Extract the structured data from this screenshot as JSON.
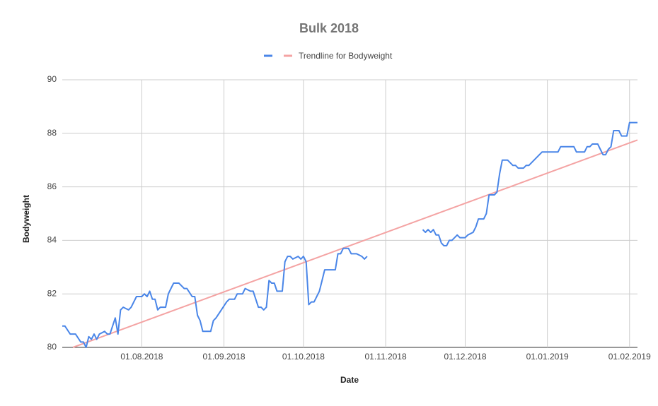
{
  "chart_data": {
    "type": "line",
    "title": "Bulk 2018",
    "x_label": "Date",
    "y_label": "Bodyweight",
    "xlim": [
      "02.07.2018",
      "04.02.2019"
    ],
    "xticks": [
      "01.08.2018",
      "01.09.2018",
      "01.10.2018",
      "01.11.2018",
      "01.12.2018",
      "01.01.2019",
      "01.02.2019"
    ],
    "ylim": [
      80,
      90
    ],
    "yticks": [
      80,
      82,
      84,
      86,
      88,
      90
    ],
    "grid": true,
    "legend": "top",
    "x": [
      "02.07.2018",
      "03.07.2018",
      "05.07.2018",
      "07.07.2018",
      "09.07.2018",
      "10.07.2018",
      "11.07.2018",
      "12.07.2018",
      "13.07.2018",
      "14.07.2018",
      "15.07.2018",
      "16.07.2018",
      "18.07.2018",
      "19.07.2018",
      "20.07.2018",
      "22.07.2018",
      "23.07.2018",
      "24.07.2018",
      "25.07.2018",
      "27.07.2018",
      "28.07.2018",
      "30.07.2018",
      "01.08.2018",
      "02.08.2018",
      "03.08.2018",
      "04.08.2018",
      "05.08.2018",
      "06.08.2018",
      "07.08.2018",
      "08.08.2018",
      "10.08.2018",
      "11.08.2018",
      "12.08.2018",
      "13.08.2018",
      "15.08.2018",
      "17.08.2018",
      "18.08.2018",
      "20.08.2018",
      "21.08.2018",
      "22.08.2018",
      "23.08.2018",
      "24.08.2018",
      "25.08.2018",
      "27.08.2018",
      "28.08.2018",
      "29.08.2018",
      "31.08.2018",
      "02.09.2018",
      "03.09.2018",
      "05.09.2018",
      "06.09.2018",
      "08.09.2018",
      "09.09.2018",
      "11.09.2018",
      "12.09.2018",
      "14.09.2018",
      "15.09.2018",
      "16.09.2018",
      "17.09.2018",
      "18.09.2018",
      "19.09.2018",
      "20.09.2018",
      "21.09.2018",
      "22.09.2018",
      "23.09.2018",
      "24.09.2018",
      "25.09.2018",
      "26.09.2018",
      "27.09.2018",
      "29.09.2018",
      "30.09.2018",
      "01.10.2018",
      "02.10.2018",
      "03.10.2018",
      "04.10.2018",
      "05.10.2018",
      "07.10.2018",
      "08.10.2018",
      "09.10.2018",
      "10.10.2018",
      "13.10.2018",
      "14.10.2018",
      "15.10.2018",
      "16.10.2018",
      "18.10.2018",
      "19.10.2018",
      "21.10.2018",
      "23.10.2018",
      "24.10.2018",
      "25.10.2018",
      "26.10.2018",
      "15.11.2018",
      "16.11.2018",
      "17.11.2018",
      "18.11.2018",
      "19.11.2018",
      "20.11.2018",
      "21.11.2018",
      "22.11.2018",
      "23.11.2018",
      "24.11.2018",
      "25.11.2018",
      "26.11.2018",
      "28.11.2018",
      "29.11.2018",
      "01.12.2018",
      "02.12.2018",
      "04.12.2018",
      "05.12.2018",
      "06.12.2018",
      "08.12.2018",
      "09.12.2018",
      "10.12.2018",
      "11.12.2018",
      "12.12.2018",
      "13.12.2018",
      "14.12.2018",
      "15.12.2018",
      "17.12.2018",
      "19.12.2018",
      "20.12.2018",
      "21.12.2018",
      "23.12.2018",
      "24.12.2018",
      "25.12.2018",
      "27.12.2018",
      "29.12.2018",
      "30.12.2018",
      "01.01.2019",
      "04.01.2019",
      "05.01.2019",
      "06.01.2019",
      "07.01.2019",
      "10.01.2019",
      "11.01.2019",
      "12.01.2019",
      "15.01.2019",
      "16.01.2019",
      "17.01.2019",
      "18.01.2019",
      "20.01.2019",
      "21.01.2019",
      "22.01.2019",
      "23.01.2019",
      "24.01.2019",
      "25.01.2019",
      "26.01.2019",
      "27.01.2019",
      "28.01.2019",
      "29.01.2019",
      "30.01.2019",
      "31.01.2019",
      "01.02.2019",
      "02.02.2019",
      "04.02.2019"
    ],
    "series": [
      {
        "color": "#4a86e8",
        "values": [
          80.8,
          80.8,
          80.5,
          80.5,
          80.2,
          80.2,
          80.0,
          80.4,
          80.3,
          80.5,
          80.3,
          80.5,
          80.6,
          80.5,
          80.5,
          81.1,
          80.5,
          81.4,
          81.5,
          81.4,
          81.5,
          81.9,
          81.9,
          82.0,
          81.9,
          82.1,
          81.8,
          81.8,
          81.4,
          81.5,
          81.5,
          82.0,
          82.2,
          82.4,
          82.4,
          82.2,
          82.2,
          81.9,
          81.9,
          81.2,
          81.0,
          80.6,
          80.6,
          80.6,
          81.0,
          81.1,
          81.4,
          81.7,
          81.8,
          81.8,
          82.0,
          82.0,
          82.2,
          82.1,
          82.1,
          81.5,
          81.5,
          81.4,
          81.5,
          82.5,
          82.4,
          82.4,
          82.1,
          82.1,
          82.1,
          83.2,
          83.4,
          83.4,
          83.3,
          83.4,
          83.3,
          83.4,
          83.2,
          81.6,
          81.7,
          81.7,
          82.1,
          82.5,
          82.9,
          82.9,
          82.9,
          83.5,
          83.5,
          83.7,
          83.7,
          83.5,
          83.5,
          83.4,
          83.3,
          83.4,
          null,
          84.4,
          84.3,
          84.4,
          84.3,
          84.4,
          84.2,
          84.2,
          83.9,
          83.8,
          83.8,
          84.0,
          84.0,
          84.2,
          84.1,
          84.1,
          84.2,
          84.3,
          84.5,
          84.8,
          84.8,
          85.0,
          85.7,
          85.7,
          85.7,
          85.8,
          86.5,
          87.0,
          87.0,
          86.8,
          86.8,
          86.7,
          86.7,
          86.8,
          86.8,
          87.0,
          87.2,
          87.3,
          87.3,
          87.3,
          87.3,
          87.5,
          87.5,
          87.5,
          87.5,
          87.3,
          87.3,
          87.5,
          87.5,
          87.6,
          87.6,
          87.4,
          87.2,
          87.2,
          87.4,
          87.5,
          88.1,
          88.1,
          88.1,
          87.9,
          87.9,
          87.9,
          88.4,
          88.4,
          88.4
        ]
      },
      {
        "name": "Trendline for Bodyweight",
        "color": "#f4a3a3",
        "x": [
          "06.07.2018",
          "04.02.2019"
        ],
        "values": [
          80.0,
          87.75
        ]
      }
    ]
  }
}
